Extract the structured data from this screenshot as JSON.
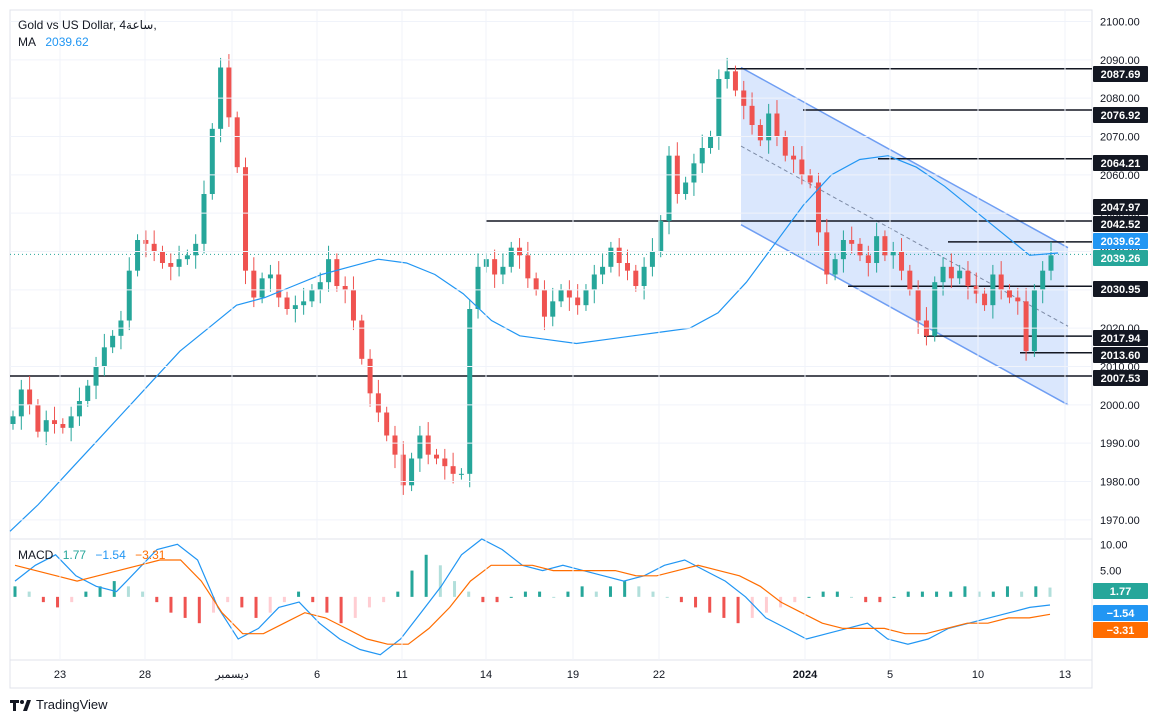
{
  "header": {
    "symbol": "Gold vs US Dollar, 4ساعة,",
    "ma_label": "MA",
    "ma_value": "2039.62"
  },
  "macd_legend": {
    "label": "MACD",
    "v1": "1.77",
    "v2": "−1.54",
    "v3": "−3.31"
  },
  "branding": {
    "name": "TradingView"
  },
  "colors": {
    "up": "#26a69a",
    "down": "#ef5350",
    "ma": "#2196f3",
    "signal": "#ff6d00",
    "channel_fill": "#bcd4fb",
    "channel_line": "#6f9ef3"
  },
  "chart_data": [
    {
      "type": "candlestick",
      "title": "Gold vs US Dollar, 4ساعة,",
      "ylim": [
        1965,
        2103
      ],
      "y_ticks": [
        "2100.00",
        "2090.00",
        "2080.00",
        "2070.00",
        "2060.00",
        "2050.00",
        "2040.00",
        "2030.00",
        "2020.00",
        "2010.00",
        "2000.00",
        "1990.00",
        "1980.00",
        "1970.00"
      ],
      "x_tick_labels": [
        "23",
        "28",
        "ديسمبر",
        "6",
        "11",
        "14",
        "19",
        "22",
        "2024",
        "5",
        "10",
        "13"
      ],
      "current_price": 2039.26,
      "ma_last": 2039.62,
      "levels": [
        {
          "label": "2087.69",
          "value": 2087.69
        },
        {
          "label": "2076.92",
          "value": 2076.92
        },
        {
          "label": "2064.21",
          "value": 2064.21
        },
        {
          "label": "2047.97",
          "value": 2047.97
        },
        {
          "label": "2042.52",
          "value": 2042.52
        },
        {
          "label": "2039.62",
          "value": 2039.62
        },
        {
          "label": "2039.26",
          "value": 2039.26
        },
        {
          "label": "2030.95",
          "value": 2030.95
        },
        {
          "label": "2017.94",
          "value": 2017.94
        },
        {
          "label": "2013.60",
          "value": 2013.6
        },
        {
          "label": "2007.53",
          "value": 2007.53
        }
      ],
      "close_path": [
        1997,
        2004,
        2000,
        1993,
        1996,
        1995,
        1994,
        1997,
        2001,
        2005,
        2010,
        2015,
        2018,
        2022,
        2035,
        2043,
        2042,
        2040,
        2037,
        2036,
        2038,
        2039,
        2042,
        2055,
        2072,
        2088,
        2075,
        2062,
        2035,
        2028,
        2033,
        2034,
        2028,
        2025,
        2026,
        2027,
        2030,
        2032,
        2038,
        2031,
        2030,
        2022,
        2012,
        2003,
        1998,
        1992,
        1987,
        1979,
        1986,
        1992,
        1987,
        1986,
        1984,
        1982,
        1982,
        2025,
        2036,
        2038,
        2034,
        2036,
        2041,
        2039,
        2033,
        2030,
        2023,
        2027,
        2030,
        2028,
        2026,
        2030,
        2034,
        2036,
        2041,
        2037,
        2035,
        2031,
        2036,
        2040,
        2048,
        2065,
        2055,
        2058,
        2063,
        2067,
        2070,
        2085,
        2087,
        2082,
        2078,
        2073,
        2069,
        2076,
        2070,
        2065,
        2064,
        2060,
        2058,
        2045,
        2034,
        2038,
        2043,
        2042,
        2039,
        2037,
        2044,
        2039,
        2040,
        2035,
        2030,
        2022,
        2018,
        2032,
        2036,
        2033,
        2035,
        2031,
        2029,
        2026,
        2034,
        2030,
        2028,
        2027,
        2014,
        2030,
        2035,
        2039
      ],
      "moving_average": [
        1967,
        1974,
        1982,
        1990,
        1998,
        2006,
        2014,
        2020,
        2026,
        2028,
        2031,
        2034,
        2036,
        2038,
        2037,
        2034,
        2029,
        2022,
        2018,
        2017,
        2016,
        2017,
        2018,
        2019,
        2020,
        2024,
        2032,
        2042,
        2052,
        2060,
        2064,
        2065,
        2062,
        2057,
        2051,
        2045,
        2039,
        2039.62
      ],
      "channel": {
        "upper_start": 2088,
        "upper_end": 2041,
        "lower_start": 2047,
        "lower_end": 2000
      }
    },
    {
      "type": "macd",
      "title": "MACD",
      "ylim": [
        -12,
        11
      ],
      "y_ticks": [
        "10.00",
        "5.00"
      ],
      "values": {
        "macd": "1.77",
        "signal_a": "−1.54",
        "signal_b": "−3.31"
      },
      "histogram_path": [
        2,
        1,
        -1,
        -2,
        -1,
        1,
        2,
        3,
        2,
        1,
        -1,
        -3,
        -4,
        -5,
        -3,
        -1,
        -2,
        -4,
        -3,
        -1,
        1,
        -1,
        -3,
        -5,
        -4,
        -2,
        -1,
        1,
        5,
        8,
        6,
        3,
        1,
        -1,
        -1,
        0,
        1,
        1,
        0,
        1,
        2,
        1,
        2,
        3,
        2,
        1,
        0,
        -1,
        -2,
        -3,
        -4,
        -5,
        -4,
        -3,
        -2,
        -1,
        0,
        1,
        1,
        0,
        -1,
        -1,
        0,
        1,
        1,
        1,
        1,
        2,
        1,
        1,
        2,
        1,
        2,
        1.77
      ],
      "macd_line_path": [
        3,
        6,
        8,
        4,
        2,
        1,
        5,
        9,
        10,
        7,
        -2,
        -8,
        -6,
        -2,
        -1,
        -5,
        -8,
        -10,
        -11,
        -8,
        -3,
        2,
        8,
        11,
        9,
        6,
        5,
        6,
        5,
        4,
        3,
        4,
        6,
        7,
        5,
        3,
        0,
        -4,
        -6,
        -8,
        -7,
        -6,
        -5,
        -8,
        -9,
        -8,
        -6,
        -5,
        -4,
        -3,
        -2,
        -1.54
      ],
      "signal_line_path": [
        6,
        5,
        4,
        3,
        4,
        5,
        6,
        7,
        7,
        3,
        -3,
        -7,
        -7,
        -5,
        -3,
        -4,
        -6,
        -8,
        -9,
        -9,
        -6,
        -2,
        3,
        6,
        6,
        6,
        5,
        5,
        5,
        5,
        4,
        4,
        5,
        6,
        5,
        4,
        2,
        -1,
        -3,
        -5,
        -6,
        -6,
        -6,
        -7,
        -7,
        -6,
        -5,
        -5,
        -4,
        -4,
        -3.31
      ]
    }
  ]
}
